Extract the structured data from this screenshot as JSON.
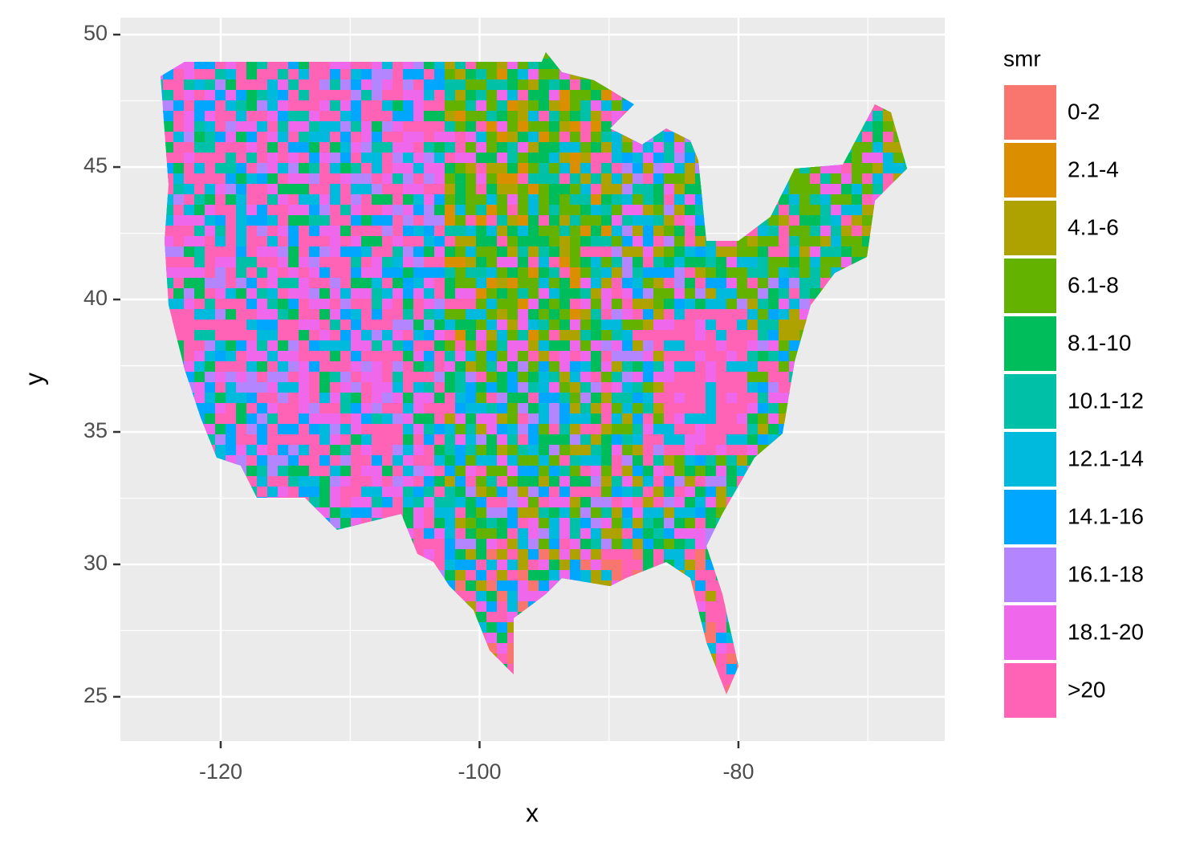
{
  "chart_data": {
    "type": "map",
    "xlabel": "x",
    "ylabel": "y",
    "xlim": [
      -127.75,
      -64.06
    ],
    "ylim": [
      23.33,
      50.64
    ],
    "xticks": [
      -120,
      -100,
      -80
    ],
    "yticks": [
      25,
      30,
      35,
      40,
      45,
      50
    ],
    "grid": true,
    "legend": {
      "title": "smr",
      "position": "right",
      "items": [
        {
          "name": "0-2",
          "color": "#f8766d"
        },
        {
          "name": "2.1-4",
          "color": "#db8e00"
        },
        {
          "name": "4.1-6",
          "color": "#aea200"
        },
        {
          "name": "6.1-8",
          "color": "#64b200"
        },
        {
          "name": "8.1-10",
          "color": "#00bd5c"
        },
        {
          "name": "10.1-12",
          "color": "#00c1a7"
        },
        {
          "name": "12.1-14",
          "color": "#00bade"
        },
        {
          "name": "14.1-16",
          "color": "#00a6ff"
        },
        {
          "name": "16.1-18",
          "color": "#b385ff"
        },
        {
          "name": "18.1-20",
          "color": "#ef67eb"
        },
        {
          "name": ">20",
          "color": "#ff63b6"
        }
      ]
    }
  }
}
